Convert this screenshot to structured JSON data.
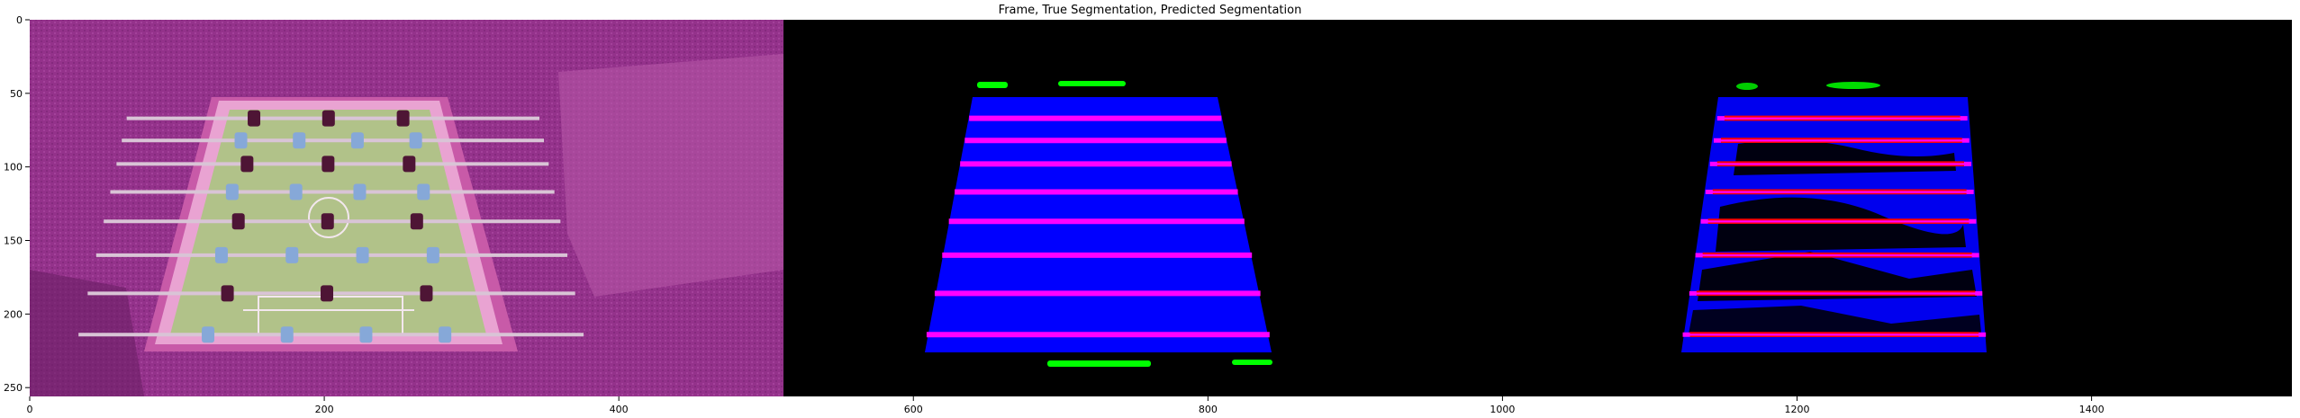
{
  "figure": {
    "title": "Frame, True Segmentation, Predicted Segmentation"
  },
  "axes": {
    "x_ticks": [
      "0",
      "200",
      "400",
      "600",
      "800",
      "1000",
      "1200",
      "1400"
    ],
    "y_ticks": [
      "0",
      "50",
      "100",
      "150",
      "200",
      "250"
    ],
    "x_range": [
      0,
      1536
    ],
    "y_range": [
      0,
      256
    ]
  },
  "panels": [
    {
      "name": "Frame",
      "x_range": [
        0,
        512
      ]
    },
    {
      "name": "True Segmentation",
      "x_range": [
        512,
        1024
      ]
    },
    {
      "name": "Predicted Segmentation",
      "x_range": [
        1024,
        1536
      ]
    }
  ],
  "colors": {
    "frame_bg": "#8e2f86",
    "field": "#b1c289",
    "table_rim": "#e9a3d2",
    "true_field": "#0000ff",
    "rods": "#ff00ff",
    "players": "#00ff00",
    "pred_rods": "#ff0000"
  },
  "table": {
    "rod_rows": [
      67,
      82,
      98,
      117,
      137,
      160,
      186,
      214
    ]
  }
}
